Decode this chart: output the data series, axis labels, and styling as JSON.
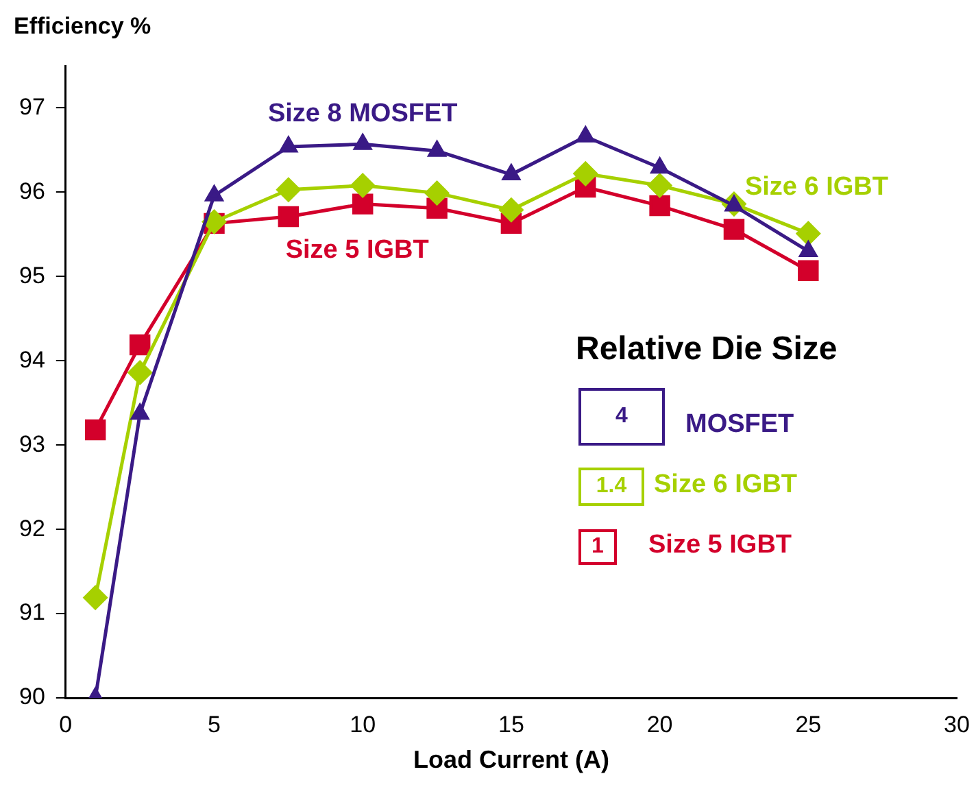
{
  "chart_data": {
    "type": "line",
    "ylabel": "Efficiency %",
    "xlabel": "Load Current (A)",
    "xlim": [
      0,
      30
    ],
    "xticks": [
      0,
      5,
      10,
      15,
      20,
      25,
      30
    ],
    "ylim": [
      90,
      97.5
    ],
    "yticks": [
      90,
      91,
      92,
      93,
      94,
      95,
      96,
      97
    ],
    "grid": false,
    "legend_title": "Relative Die Size",
    "annotations": [
      "4",
      "MOSFET",
      "1.4",
      "Size 6 IGBT",
      "1",
      "Size 5 IGBT"
    ],
    "x": [
      1,
      2.5,
      5,
      7.5,
      10,
      12.5,
      15,
      17.5,
      20,
      22.5,
      25
    ],
    "series": [
      {
        "name": "Size 8 MOSFET",
        "color": "#3a1a86",
        "marker": "triangle",
        "values": [
          90.0,
          93.37,
          95.96,
          96.54,
          96.57,
          96.49,
          96.21,
          96.66,
          96.29,
          95.84,
          95.3
        ]
      },
      {
        "name": "Size 6 IGBT",
        "color": "#a6d000",
        "marker": "diamond",
        "values": [
          91.19,
          93.86,
          95.65,
          96.03,
          96.08,
          95.99,
          95.79,
          96.22,
          96.08,
          95.86,
          95.51
        ]
      },
      {
        "name": "Size 5 IGBT",
        "color": "#d3002b",
        "marker": "square",
        "values": [
          93.18,
          94.19,
          95.63,
          95.71,
          95.86,
          95.81,
          95.63,
          96.06,
          95.84,
          95.56,
          95.07
        ]
      }
    ]
  }
}
